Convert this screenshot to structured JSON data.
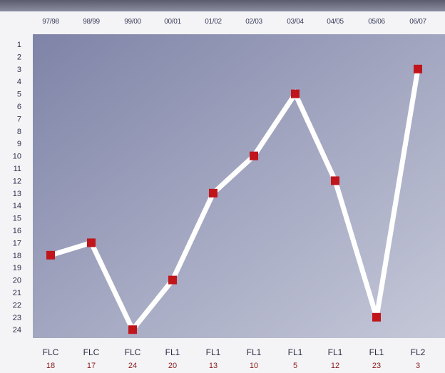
{
  "chart_data": {
    "type": "line",
    "title": "",
    "xlabel": "",
    "ylabel": "",
    "x": [
      "97/98",
      "98/99",
      "99/00",
      "00/01",
      "01/02",
      "02/03",
      "03/04",
      "04/05",
      "05/06",
      "06/07"
    ],
    "series": [
      {
        "values": [
          18,
          17,
          24,
          20,
          13,
          10,
          5,
          12,
          23,
          3
        ]
      }
    ],
    "leagues": [
      "FLC",
      "FLC",
      "FLC",
      "FL1",
      "FL1",
      "FL1",
      "FL1",
      "FL1",
      "FL1",
      "FL2"
    ],
    "positions": [
      "18",
      "17",
      "24",
      "20",
      "13",
      "10",
      "5",
      "12",
      "23",
      "3"
    ],
    "y_ticks": [
      "1",
      "2",
      "3",
      "4",
      "5",
      "6",
      "7",
      "8",
      "9",
      "10",
      "11",
      "12",
      "13",
      "14",
      "15",
      "16",
      "17",
      "18",
      "19",
      "20",
      "21",
      "22",
      "23",
      "24"
    ],
    "ylim": [
      1,
      24
    ],
    "y_inverted": true,
    "grid": false,
    "line_color": "#ffffff",
    "marker_color": "#c0161b",
    "plot_bg_colors": [
      "#7f84a8",
      "#c5c8d8"
    ]
  }
}
